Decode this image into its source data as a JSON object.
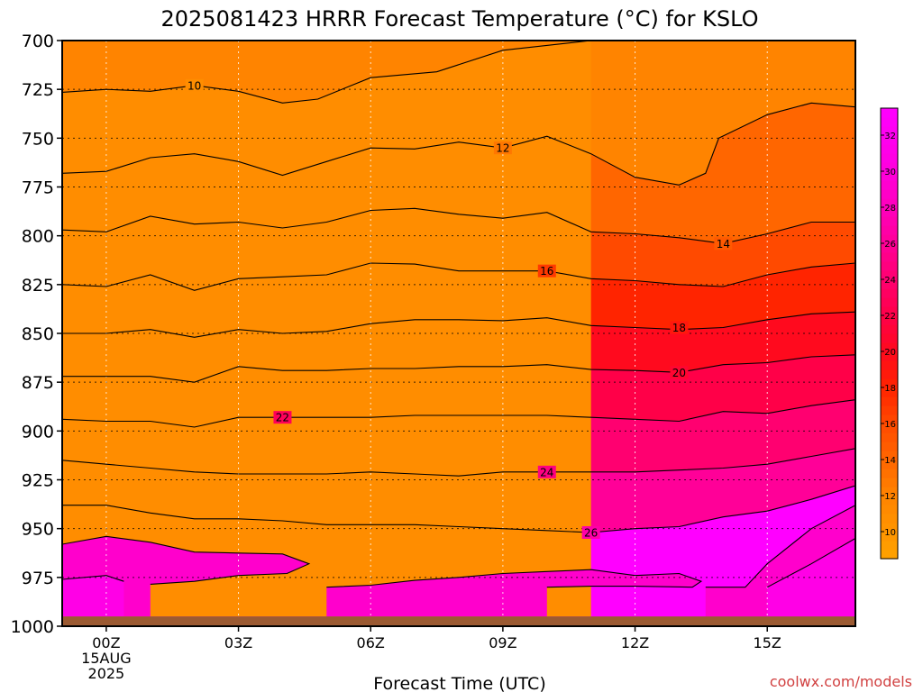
{
  "chart_data": {
    "type": "contour",
    "title": "2025081423 HRRR Forecast Temperature (°C) for KSLO",
    "xlabel": "Forecast Time (UTC)",
    "ylabel": "",
    "x_ticks": [
      "00Z",
      "03Z",
      "06Z",
      "09Z",
      "12Z",
      "15Z"
    ],
    "x_tick_hours": [
      0,
      3,
      6,
      9,
      12,
      15
    ],
    "x_date_line1": "15AUG",
    "x_date_line2": "2025",
    "xlim": [
      -1,
      17
    ],
    "y_ticks": [
      700,
      725,
      750,
      775,
      800,
      825,
      850,
      875,
      900,
      925,
      950,
      975,
      1000
    ],
    "ylim": [
      700,
      1000
    ],
    "grid": true,
    "ground_pressure_hPa": 995,
    "colorbar": {
      "ticks": [
        10,
        12,
        14,
        16,
        18,
        20,
        22,
        24,
        26,
        28,
        30,
        32
      ],
      "range": [
        8.5,
        33.5
      ],
      "position": "right",
      "colors": [
        {
          "value": 8.5,
          "color": "#ffa200"
        },
        {
          "value": 12,
          "color": "#ff8400"
        },
        {
          "value": 14,
          "color": "#ff6600"
        },
        {
          "value": 16,
          "color": "#ff4a00"
        },
        {
          "value": 18,
          "color": "#ff2400"
        },
        {
          "value": 20,
          "color": "#ff0a1e"
        },
        {
          "value": 22,
          "color": "#ff0048"
        },
        {
          "value": 24,
          "color": "#ff0070"
        },
        {
          "value": 26,
          "color": "#ff0098"
        },
        {
          "value": 28,
          "color": "#ff00bc"
        },
        {
          "value": 30,
          "color": "#ff00dc"
        },
        {
          "value": 33.5,
          "color": "#ff00ff"
        }
      ]
    },
    "contours": [
      {
        "level": 10,
        "points": [
          [
            -1,
            726.5
          ],
          [
            0,
            725
          ],
          [
            1,
            726
          ],
          [
            2,
            723
          ],
          [
            3,
            726
          ],
          [
            4,
            732
          ],
          [
            4.8,
            730
          ],
          [
            6,
            719
          ],
          [
            7.5,
            716
          ],
          [
            9,
            705
          ],
          [
            11,
            700
          ]
        ],
        "label_at": [
          2,
          723
        ]
      },
      {
        "level": 12,
        "points": [
          [
            -1,
            768
          ],
          [
            0,
            767
          ],
          [
            1,
            760
          ],
          [
            2,
            758
          ],
          [
            3,
            762
          ],
          [
            4,
            769
          ],
          [
            5,
            762
          ],
          [
            6,
            755
          ],
          [
            7,
            755.5
          ],
          [
            8,
            752
          ],
          [
            9,
            755
          ],
          [
            10,
            749
          ],
          [
            11,
            758
          ],
          [
            12,
            770
          ],
          [
            13,
            774
          ],
          [
            13.6,
            768
          ],
          [
            13.9,
            750
          ],
          [
            15,
            738
          ],
          [
            16,
            732
          ],
          [
            17,
            734
          ]
        ],
        "label_at": [
          9,
          755
        ]
      },
      {
        "level": 14,
        "points": [
          [
            -1,
            797
          ],
          [
            0,
            798
          ],
          [
            1,
            790
          ],
          [
            2,
            794
          ],
          [
            3,
            793
          ],
          [
            4,
            796
          ],
          [
            5,
            793
          ],
          [
            6,
            787
          ],
          [
            7,
            786
          ],
          [
            8,
            789
          ],
          [
            9,
            791
          ],
          [
            10,
            788
          ],
          [
            11,
            798
          ],
          [
            12,
            799
          ],
          [
            13,
            801
          ],
          [
            14,
            804
          ],
          [
            15,
            799
          ],
          [
            16,
            793
          ],
          [
            17,
            793
          ]
        ],
        "label_at": [
          14,
          804
        ]
      },
      {
        "level": 16,
        "points": [
          [
            -1,
            825
          ],
          [
            0,
            826
          ],
          [
            1,
            820
          ],
          [
            2,
            828
          ],
          [
            3,
            822
          ],
          [
            4,
            821
          ],
          [
            5,
            820
          ],
          [
            6,
            814
          ],
          [
            7,
            814.5
          ],
          [
            8,
            818
          ],
          [
            9,
            818
          ],
          [
            10,
            818
          ],
          [
            11,
            822
          ],
          [
            12,
            823
          ],
          [
            13,
            825
          ],
          [
            14,
            826
          ],
          [
            15,
            820
          ],
          [
            16,
            816
          ],
          [
            17,
            814
          ]
        ],
        "label_at": [
          10,
          818
        ]
      },
      {
        "level": 18,
        "points": [
          [
            -1,
            850
          ],
          [
            0,
            850
          ],
          [
            1,
            848
          ],
          [
            2,
            852
          ],
          [
            3,
            848
          ],
          [
            4,
            850
          ],
          [
            5,
            849
          ],
          [
            6,
            845
          ],
          [
            7,
            843
          ],
          [
            8,
            843
          ],
          [
            9,
            843.5
          ],
          [
            10,
            842
          ],
          [
            11,
            846
          ],
          [
            12,
            847
          ],
          [
            13,
            848
          ],
          [
            14,
            847
          ],
          [
            15,
            843
          ],
          [
            16,
            840
          ],
          [
            17,
            839
          ]
        ],
        "label_at": [
          13,
          847
        ]
      },
      {
        "level": 20,
        "points": [
          [
            -1,
            872
          ],
          [
            0,
            872
          ],
          [
            1,
            872
          ],
          [
            2,
            875
          ],
          [
            3,
            867
          ],
          [
            4,
            869
          ],
          [
            5,
            869
          ],
          [
            6,
            868
          ],
          [
            7,
            868
          ],
          [
            8,
            867
          ],
          [
            9,
            867
          ],
          [
            10,
            866
          ],
          [
            11,
            868.5
          ],
          [
            12,
            869
          ],
          [
            13,
            870
          ],
          [
            14,
            866
          ],
          [
            15,
            865
          ],
          [
            16,
            862
          ],
          [
            17,
            861
          ]
        ],
        "label_at": [
          13,
          870
        ]
      },
      {
        "level": 22,
        "points": [
          [
            -1,
            894
          ],
          [
            0,
            895
          ],
          [
            1,
            895
          ],
          [
            2,
            898
          ],
          [
            3,
            893
          ],
          [
            4,
            893
          ],
          [
            5,
            893
          ],
          [
            6,
            893
          ],
          [
            7,
            892
          ],
          [
            8,
            892
          ],
          [
            9,
            892
          ],
          [
            10,
            892
          ],
          [
            11,
            893
          ],
          [
            12,
            894
          ],
          [
            13,
            895
          ],
          [
            14,
            890
          ],
          [
            15,
            891
          ],
          [
            16,
            887
          ],
          [
            17,
            884
          ]
        ],
        "label_at": [
          4,
          893
        ]
      },
      {
        "level": 24,
        "points": [
          [
            -1,
            915
          ],
          [
            0,
            917
          ],
          [
            1,
            919
          ],
          [
            2,
            921
          ],
          [
            3,
            922
          ],
          [
            4,
            922
          ],
          [
            5,
            922
          ],
          [
            6,
            921
          ],
          [
            7,
            922
          ],
          [
            8,
            923
          ],
          [
            9,
            921
          ],
          [
            10,
            921
          ],
          [
            11,
            921
          ],
          [
            12,
            921
          ],
          [
            13,
            920
          ],
          [
            14,
            919
          ],
          [
            15,
            917
          ],
          [
            16,
            913
          ],
          [
            17,
            909
          ]
        ],
        "label_at": [
          10,
          921
        ]
      },
      {
        "level": 26,
        "points": [
          [
            -1,
            938
          ],
          [
            0,
            938
          ],
          [
            1,
            942
          ],
          [
            2,
            945
          ],
          [
            3,
            945
          ],
          [
            4,
            946
          ],
          [
            5,
            948
          ],
          [
            6,
            948
          ],
          [
            7,
            948
          ],
          [
            8,
            949
          ],
          [
            9,
            950
          ],
          [
            10,
            951
          ],
          [
            11,
            952
          ],
          [
            12,
            950
          ],
          [
            13,
            949
          ],
          [
            14,
            944
          ],
          [
            15,
            941
          ],
          [
            16,
            935
          ],
          [
            17,
            928
          ]
        ],
        "label_at": [
          11,
          952
        ]
      },
      {
        "level": 28,
        "points": [
          [
            -1,
            958
          ],
          [
            0,
            954
          ],
          [
            1,
            957
          ],
          [
            2,
            962
          ],
          [
            3,
            962.5
          ],
          [
            4,
            963
          ],
          [
            4.6,
            968
          ],
          [
            4.1,
            973
          ],
          [
            3,
            974
          ],
          [
            2,
            977
          ],
          [
            1,
            978.5
          ]
        ],
        "label_at": null
      },
      {
        "level": 28,
        "points": [
          [
            5,
            980
          ],
          [
            6,
            979
          ],
          [
            7,
            976.5
          ],
          [
            8,
            975
          ],
          [
            9,
            973
          ],
          [
            10,
            972
          ],
          [
            11,
            971
          ],
          [
            12,
            974
          ],
          [
            13,
            973
          ],
          [
            13.5,
            977
          ],
          [
            13.3,
            980
          ],
          [
            12,
            979.5
          ],
          [
            11,
            979.5
          ],
          [
            10,
            980
          ]
        ],
        "label_at": null
      },
      {
        "level": 28,
        "points": [
          [
            13.6,
            980
          ],
          [
            14.5,
            980
          ],
          [
            15,
            968
          ],
          [
            16,
            950
          ],
          [
            17,
            938
          ]
        ],
        "label_at": null
      },
      {
        "level": 30,
        "points": [
          [
            -1,
            976
          ],
          [
            0,
            974
          ],
          [
            0.4,
            977
          ]
        ],
        "label_at": null
      },
      {
        "level": 30,
        "points": [
          [
            15,
            980
          ],
          [
            16,
            968
          ],
          [
            17,
            955
          ]
        ],
        "label_at": null
      }
    ],
    "watermark": "coolwx.com/models"
  }
}
